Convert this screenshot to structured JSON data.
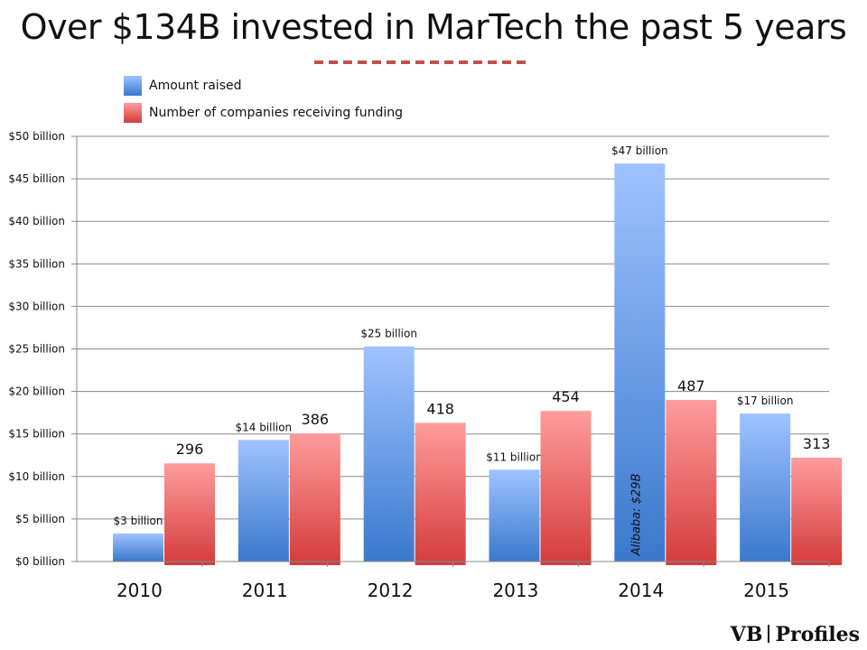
{
  "title": "Over $134B invested in MarTech the past 5 years",
  "legend": [
    {
      "label": "Amount raised",
      "color": "#4a86d8"
    },
    {
      "label": "Number of companies receiving funding",
      "color": "#e05555"
    }
  ],
  "annotation": "Alibaba: $29B",
  "logo": {
    "part1": "VB",
    "part2": "Profiles"
  },
  "colors": {
    "blue_top": "#9fc3ff",
    "blue_bottom": "#3a78cc",
    "red_top": "#ff9c9c",
    "red_bottom": "#d43b3b",
    "accent": "#c0504d"
  },
  "chart_data": {
    "type": "bar",
    "title": "Over $134B invested in MarTech the past 5 years",
    "categories": [
      "2010",
      "2011",
      "2012",
      "2013",
      "2014",
      "2015"
    ],
    "series": [
      {
        "name": "Amount raised",
        "values": [
          3.3,
          14.3,
          25.3,
          10.8,
          46.8,
          17.4
        ],
        "data_labels": [
          "$3 billion",
          "$14 billion",
          "$25 billion",
          "$11 billion",
          "$47 billion",
          "$17 billion"
        ]
      },
      {
        "name": "Number of companies receiving funding",
        "values": [
          296,
          386,
          418,
          454,
          487,
          313
        ],
        "data_labels": [
          "296",
          "386",
          "418",
          "454",
          "487",
          "313"
        ]
      }
    ],
    "y_ticks": [
      0,
      5,
      10,
      15,
      20,
      25,
      30,
      35,
      40,
      45,
      50
    ],
    "y_tick_labels": [
      "$0 billion",
      "$5 billion",
      "$10 billion",
      "$15 billion",
      "$20 billion",
      "$25 billion",
      "$30 billion",
      "$35 billion",
      "$40 billion",
      "$45 billion",
      "$50 billion"
    ],
    "ylim": [
      0,
      50
    ],
    "grid": true,
    "legend_position": "top-left"
  }
}
